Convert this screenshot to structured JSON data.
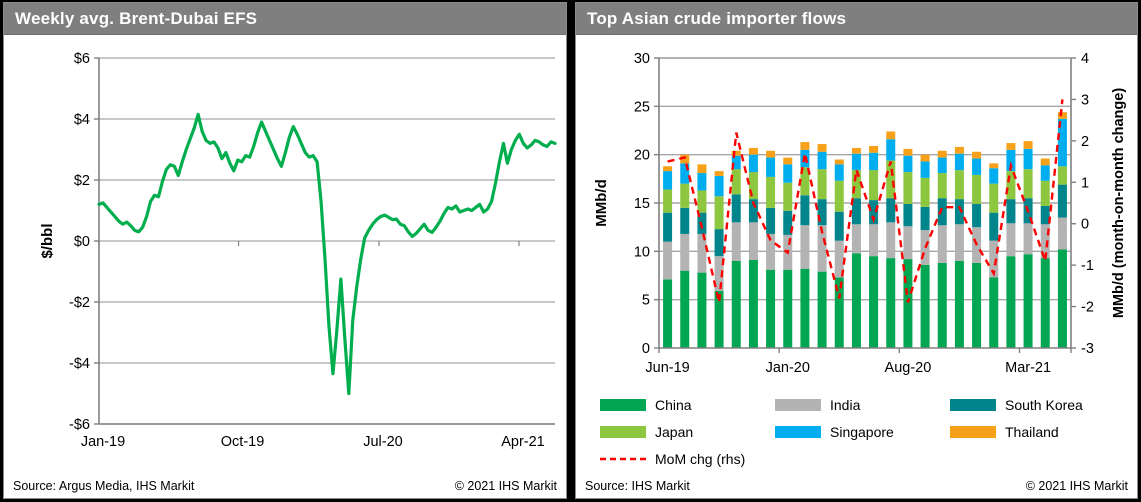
{
  "panels": {
    "left": {
      "title": "Weekly avg. Brent-Dubai EFS",
      "source": "Source: Argus Media, IHS Markit",
      "copyright": "© 2021 IHS Markit"
    },
    "right": {
      "title": "Top Asian crude importer flows",
      "source": "Source: IHS Markit",
      "copyright": "© 2021 IHS Markit"
    }
  },
  "colors": {
    "header_bg": "#7F7F7F",
    "header_text": "#FFFFFF",
    "gridline": "#A6A6A6",
    "axis": "#808080",
    "efs_line": "#00AE4E",
    "mom_line": "#FF0000"
  },
  "chart_data": [
    {
      "type": "line",
      "title": "Weekly avg. Brent-Dubai EFS",
      "xlabel": "",
      "ylabel": "$/bbl",
      "ylim": [
        -6,
        6
      ],
      "grid": true,
      "yticks": [
        {
          "value": 6,
          "label": "$6"
        },
        {
          "value": 4,
          "label": "$4"
        },
        {
          "value": 2,
          "label": "$2"
        },
        {
          "value": 0,
          "label": "$0"
        },
        {
          "value": -2,
          "label": "-$2"
        },
        {
          "value": -4,
          "label": "-$4"
        },
        {
          "value": -6,
          "label": "-$6"
        }
      ],
      "xticks": [
        {
          "pos": 0.0,
          "label": "Jan-19"
        },
        {
          "pos": 0.306,
          "label": "Oct-19"
        },
        {
          "pos": 0.614,
          "label": "Jul-20"
        },
        {
          "pos": 0.921,
          "label": "Apr-21"
        }
      ],
      "series": [
        {
          "name": "Weekly avg. Brent-Dubai EFS",
          "color": "#00AE4E",
          "values": [
            1.2,
            1.25,
            1.1,
            0.95,
            0.8,
            0.65,
            0.55,
            0.62,
            0.5,
            0.35,
            0.3,
            0.45,
            0.8,
            1.3,
            1.5,
            1.45,
            1.95,
            2.35,
            2.5,
            2.45,
            2.15,
            2.6,
            3.0,
            3.35,
            3.7,
            4.15,
            3.6,
            3.3,
            3.2,
            3.25,
            3.05,
            2.7,
            2.9,
            2.55,
            2.3,
            2.65,
            2.6,
            2.8,
            2.75,
            3.1,
            3.55,
            3.9,
            3.6,
            3.3,
            3.0,
            2.7,
            2.45,
            2.9,
            3.4,
            3.75,
            3.5,
            3.2,
            2.9,
            2.75,
            2.8,
            2.6,
            1.3,
            -0.6,
            -2.8,
            -4.35,
            -2.9,
            -1.25,
            -3.2,
            -5.0,
            -2.6,
            -1.5,
            -0.6,
            0.1,
            0.35,
            0.55,
            0.7,
            0.8,
            0.85,
            0.78,
            0.7,
            0.72,
            0.55,
            0.5,
            0.3,
            0.15,
            0.25,
            0.4,
            0.55,
            0.35,
            0.28,
            0.45,
            0.65,
            0.9,
            1.1,
            1.05,
            1.15,
            0.95,
            1.0,
            1.05,
            1.0,
            1.1,
            1.2,
            0.95,
            1.05,
            1.3,
            1.9,
            2.6,
            3.2,
            2.55,
            3.0,
            3.3,
            3.5,
            3.2,
            3.05,
            3.15,
            3.3,
            3.25,
            3.15,
            3.1,
            3.25,
            3.2
          ]
        }
      ]
    },
    {
      "type": "bar",
      "subtype": "stacked-with-line",
      "title": "Top Asian crude importer flows",
      "ylabel_left": "MMb/d",
      "ylabel_right": "MMb/d (month-on-month change)",
      "ylim_left": [
        0,
        30
      ],
      "ylim_right": [
        -3,
        4
      ],
      "yticks_left": [
        0,
        5,
        10,
        15,
        20,
        25,
        30
      ],
      "yticks_right": [
        -3,
        -2,
        -1,
        0,
        1,
        2,
        3,
        4
      ],
      "grid": true,
      "categories": [
        "Jun-19",
        "Jul-19",
        "Aug-19",
        "Sep-19",
        "Oct-19",
        "Nov-19",
        "Dec-19",
        "Jan-20",
        "Feb-20",
        "Mar-20",
        "Apr-20",
        "May-20",
        "Jun-20",
        "Jul-20",
        "Aug-20",
        "Sep-20",
        "Oct-20",
        "Nov-20",
        "Dec-20",
        "Jan-21",
        "Feb-21",
        "Mar-21",
        "Apr-21",
        "May-21"
      ],
      "xtick_labels": [
        {
          "index": 0,
          "label": "Jun-19"
        },
        {
          "index": 7,
          "label": "Jan-20"
        },
        {
          "index": 14,
          "label": "Aug-20"
        },
        {
          "index": 21,
          "label": "Mar-21"
        }
      ],
      "series": [
        {
          "name": "China",
          "color": "#00A651",
          "values": [
            7.1,
            8.0,
            7.8,
            5.9,
            9.0,
            9.1,
            8.1,
            8.1,
            8.2,
            7.9,
            7.3,
            9.8,
            9.5,
            9.3,
            9.2,
            8.6,
            8.8,
            9.0,
            8.8,
            7.3,
            9.5,
            9.7,
            9.3,
            10.2
          ]
        },
        {
          "name": "India",
          "color": "#B3B3B3",
          "values": [
            3.9,
            3.8,
            4.0,
            3.6,
            4.0,
            3.9,
            3.7,
            3.6,
            4.5,
            4.8,
            3.8,
            3.0,
            3.3,
            3.7,
            3.4,
            3.6,
            3.9,
            3.8,
            3.7,
            3.8,
            3.4,
            3.2,
            3.5,
            3.3
          ]
        },
        {
          "name": "South Korea",
          "color": "#00858C",
          "values": [
            3.0,
            2.7,
            2.2,
            2.8,
            2.9,
            2.4,
            2.7,
            2.5,
            3.1,
            2.7,
            3.0,
            2.7,
            2.5,
            2.5,
            2.3,
            2.4,
            2.8,
            2.6,
            2.4,
            2.9,
            2.5,
            2.6,
            1.9,
            3.4
          ]
        },
        {
          "name": "Japan",
          "color": "#8DC63F",
          "values": [
            2.4,
            2.5,
            2.3,
            3.4,
            2.6,
            2.8,
            3.2,
            2.9,
            2.9,
            3.1,
            3.2,
            2.9,
            3.1,
            3.9,
            3.3,
            3.0,
            2.6,
            3.0,
            3.0,
            3.0,
            2.9,
            3.0,
            2.6,
            1.9
          ]
        },
        {
          "name": "Singapore",
          "color": "#00AEEF",
          "values": [
            1.9,
            2.1,
            1.8,
            2.1,
            1.4,
            1.8,
            2.0,
            1.9,
            1.8,
            1.8,
            1.7,
            1.7,
            1.8,
            2.2,
            1.7,
            1.7,
            1.6,
            1.7,
            1.7,
            1.6,
            2.2,
            2.1,
            1.6,
            4.9
          ]
        },
        {
          "name": "Thailand",
          "color": "#F7A11A",
          "values": [
            0.5,
            0.9,
            0.9,
            0.5,
            0.5,
            0.7,
            0.7,
            0.7,
            0.8,
            0.8,
            0.5,
            0.6,
            0.7,
            0.8,
            0.7,
            0.7,
            0.7,
            0.7,
            0.7,
            0.5,
            0.7,
            0.8,
            0.7,
            0.7
          ]
        }
      ],
      "line_series": {
        "name": "MoM chg (rhs)",
        "color": "#FF0000",
        "style": "dashed",
        "axis": "right",
        "values": [
          1.5,
          1.6,
          -0.1,
          -1.9,
          2.2,
          0.5,
          -0.4,
          -0.7,
          1.7,
          -0.2,
          -1.8,
          1.3,
          0.1,
          1.5,
          -1.9,
          -0.6,
          0.4,
          0.4,
          -0.5,
          -1.2,
          1.4,
          0.3,
          -0.9,
          3.0
        ]
      },
      "legend_position": "bottom"
    }
  ]
}
